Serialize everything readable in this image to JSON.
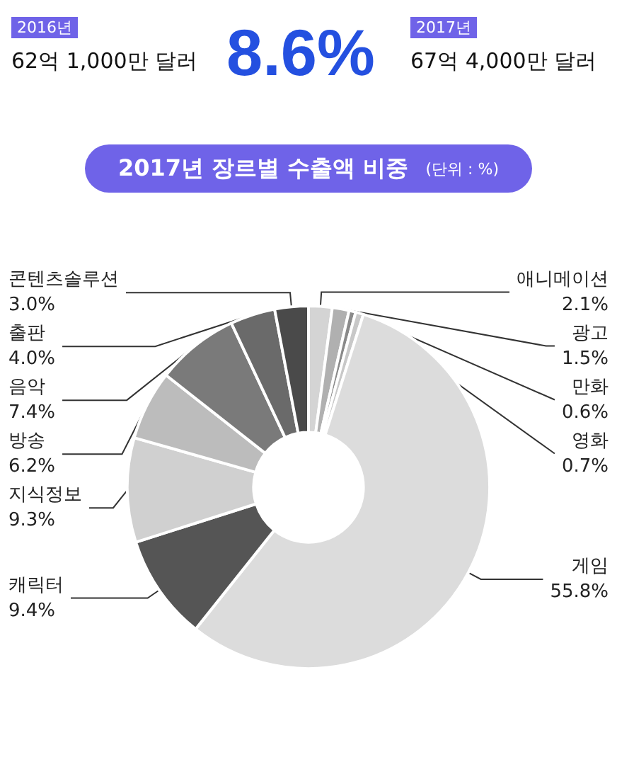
{
  "chart_data": {
    "type": "donut",
    "title": "2017년 장르별 수출액 비중",
    "subtitle": "(단위 : %)",
    "annotations": [
      "2016년",
      "62억 1,000만 달러",
      "8.6%",
      "2017년",
      "67억 4,000만 달러"
    ],
    "categories": [
      "애니메이션",
      "광고",
      "만화",
      "영화",
      "게임",
      "캐릭터",
      "지식정보",
      "방송",
      "음악",
      "출판",
      "콘텐츠솔루션"
    ],
    "values": [
      2.1,
      1.5,
      0.6,
      0.7,
      55.8,
      9.4,
      9.3,
      6.2,
      7.4,
      4.0,
      3.0
    ],
    "value_labels": [
      "2.1%",
      "1.5%",
      "0.6%",
      "0.7%",
      "55.8%",
      "9.4%",
      "9.3%",
      "6.2%",
      "7.4%",
      "4.0%",
      "3.0%"
    ],
    "colors": [
      "#d4d4d4",
      "#b0b0b0",
      "#8a8a8a",
      "#c8c8c8",
      "#dcdcdc",
      "#555555",
      "#d0d0d0",
      "#bcbcbc",
      "#7a7a7a",
      "#6a6a6a",
      "#4a4a4a"
    ],
    "legend": false
  }
}
